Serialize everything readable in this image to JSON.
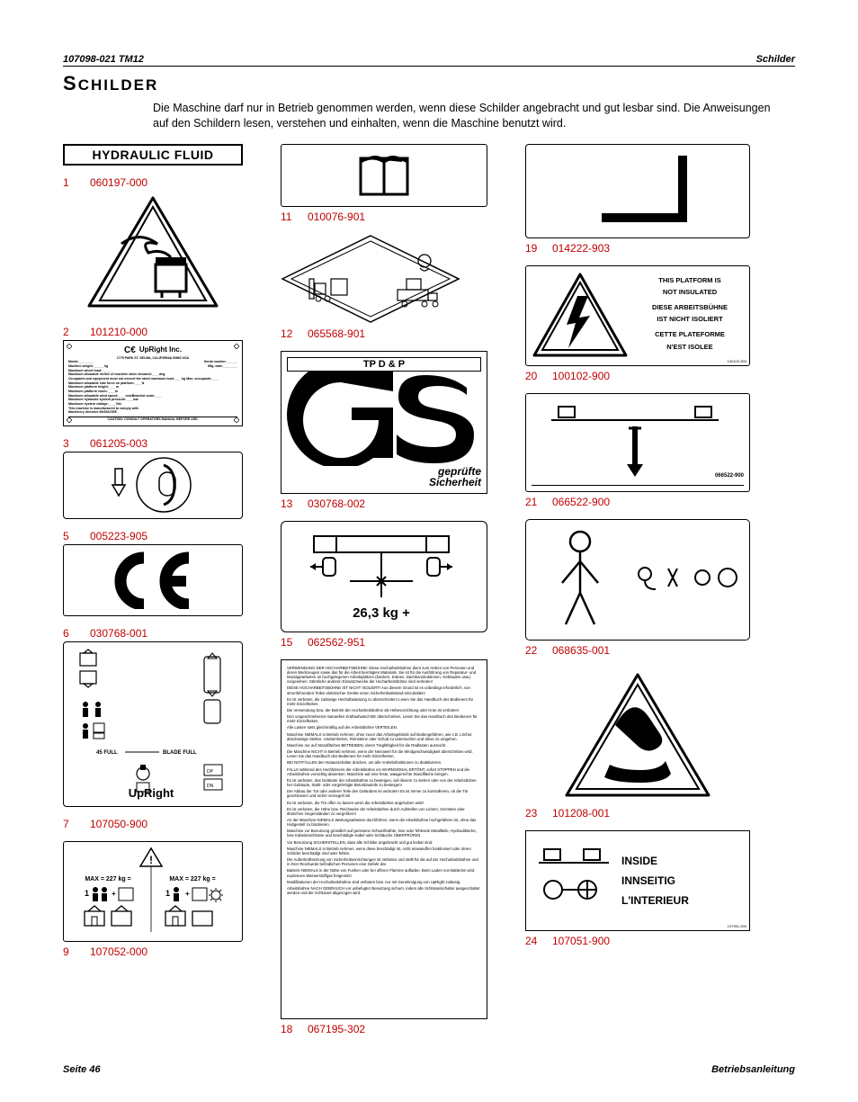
{
  "header": {
    "left": "107098-021 TM12",
    "right": "Schilder"
  },
  "title": {
    "cap": "S",
    "rest": "CHILDER"
  },
  "intro": "Die Maschine darf nur in Betrieb genommen werden, wenn diese Schilder angebracht und gut lesbar sind. Die Anweisungen auf den Schildern lesen, verstehen und einhalten, wenn die Maschine benutzt wird.",
  "footer": {
    "left": "Seite 46",
    "right": "Betriebsanleitung"
  },
  "colors": {
    "red": "#c00000",
    "black": "#000000",
    "yellow_tri": "#ffd400"
  },
  "column1": [
    {
      "num": "",
      "part": "",
      "title": "HYDRAULIC FLUID"
    },
    {
      "num": "1",
      "part": "060197-000"
    },
    {
      "num": "2",
      "part": "101210-000"
    },
    {
      "num": "3",
      "part": "061205-003"
    },
    {
      "num": "5",
      "part": "005223-905"
    },
    {
      "num": "6",
      "part": "030768-001"
    },
    {
      "num": "7",
      "part": "107050-900"
    },
    {
      "num": "9",
      "part": "107052-000"
    }
  ],
  "column2": [
    {
      "num": "11",
      "part": "010076-901"
    },
    {
      "num": "12",
      "part": "065568-901"
    },
    {
      "num": "13",
      "part": "030768-002",
      "label_top": "TP D & P",
      "label_bot1": "geprüfte",
      "label_bot2": "Sicherheit"
    },
    {
      "num": "15",
      "part": "062562-951",
      "weight": "26,3 kg +"
    },
    {
      "num": "18",
      "part": "067195-302"
    }
  ],
  "column3": [
    {
      "num": "19",
      "part": "014222-903"
    },
    {
      "num": "20",
      "part": "100102-900",
      "lines": [
        "THIS PLATFORM IS",
        "NOT INSULATED",
        "DIESE ARBEITSBÜHNE",
        "IST NICHT ISOLIERT",
        "CETTE PLATEFORME",
        "N'EST ISOLEE"
      ]
    },
    {
      "num": "21",
      "part": "066522-900"
    },
    {
      "num": "22",
      "part": "068635-001"
    },
    {
      "num": "23",
      "part": "101208-001"
    },
    {
      "num": "24",
      "part": "107051-900",
      "lines": [
        "INSIDE",
        "INNSEITIG",
        "L'INTERIEUR"
      ]
    }
  ],
  "nameplate": {
    "brand": "UpRight Inc.",
    "addr": "1775 PARK ST. SELMA, CALIFORNIA 93662 USA",
    "rows": [
      [
        "Model:________",
        "Serial number:______"
      ],
      [
        "Machine weight:______kg",
        "Mfg. date:________"
      ],
      [
        "Maximum wheel load:______",
        ""
      ],
      [
        "Maximum allowable incline of machine when elevated:____deg.",
        ""
      ],
      [
        "Occupants and equipment must not exceed the rated maximum load:____kg    Max. occupants:____",
        ""
      ],
      [
        "Maximum allowable side force on platform:____N",
        ""
      ],
      [
        "Maximum platform height:____m",
        ""
      ],
      [
        "Maximum platform reach:____m",
        ""
      ],
      [
        "Maximum allowable wind speed:____m/s/Beaufort scale____",
        ""
      ],
      [
        "Maximum hydraulic system pressure:____bar",
        ""
      ],
      [
        "Maximum system voltage:____Vdc",
        ""
      ],
      [
        "This machine is manufactured to comply with",
        ""
      ],
      [
        "Machinery directive 89/392/CEE",
        ""
      ]
    ],
    "caution": "CAUTION: CONSULT OPERATORS MANUAL BEFORE USE."
  },
  "upright_diagram": {
    "brand": "UpRight",
    "hi": "HI",
    "lo": "LO",
    "full": "45 FULL",
    "blade": "BLADE FULL",
    "btns": [
      "UP",
      "DN"
    ]
  },
  "max_decal": {
    "left": "MAX = 227 kg =",
    "right": "MAX = 227 kg ="
  },
  "warning_text": {
    "title": "VERWENDUNG DER HOCHARBEITSBÜHNE:",
    "paragraphs": [
      "VERWENDUNG DER HOCHARBEITSBÜHNE: Diese Hocharbeitsbühne dient zum Heben von Personen und deren Werkzeugen sowie das für die Arbeit benötigten Materials. Sie ist für die Ausführung von Reparatur- und Montagearbeiten an hochgelegenen Arbeitsplätzen (Decken, Kränen, Dachkonstruktionen, Gebäuden usw.) vorgesehen. Sämtliche anderen Einsatzzwecke der Hocharbeitsbühne sind verboten!",
      "DIESE HOCHARBEITSBÜHNE IST NICHT ISOLIERT! Aus diesem Grund ist es unbedingt erforderlich, von stromführenden Teilen elektrischer Geräte einen Sicherheitsabstand einzuhalten!",
      "Es ist verboten, die zulässige Höchstbelastung zu überschreiten! Lesen Sie das Handbuch des Bedieners für mehr Einzelheiten.",
      "Die Verwendung bzw. der Betrieb der Hocharbeitsbühne als Hebevorrichtung oder Kran ist verboten!",
      "Den vorgeschriebenen manuellen Kraftaufwand NIE überschreiten. Lesen Sie das Handbuch des Bedieners für mehr Einzelheiten.",
      "Alle Lasten stets gleichmäßig auf der Arbeitsbühne VERTEILEN.",
      "Maschine NIEMALS in Betrieb nehmen, ohne zuvor das Arbeitsgelände auf Bodengefahren, wie z.B. Löcher, abschüssige Stellen, Unebenheiten, Rinnsteine oder Schutt zu untersuchen und diese zu umgehen.",
      "Maschine nur auf Standflächen BETREIBEN, deren Tragfähigkeit für die Radlasten ausreicht.",
      "Die Maschine NICHT in Betrieb nehmen, wenn der Nennwert für die Windgeschwindigkeit überschritten wird. Lesen Sie das Handbuch des Bedieners für mehr Einzelheiten.",
      "BEI NOTFÄLLEN den Notausschalter drücken, um alle Antriebsfunktionen zu deaktivieren.",
      "FALLS während des Hochfahrens der Arbeitsbühne ein WARNSIGNAL ERTÖNT, sofort STOPPEN und die Arbeitsbühne vorsichtig absenken. Maschine auf eine feste, waagerechte Standfläche bringen.",
      "Es ist verboten, das Geländer der Arbeitsbühne zu besteigen, auf diesem zu stehen oder von der Arbeitsbühne her Gebäude, Stahl- oder vorgefertigte Betonbauteile zu besteigen!",
      "Der Abbau der Tür oder anderer Teile des Geländers ist verboten! Es ist immer zu kontrollieren, ob die Tür geschlossen und sicher verriegelt ist!",
      "Es ist verboten, die Tür offen zu lassen wenn die Arbeitsbühne angehoben wird!",
      "Es ist verboten, die Höhe bzw. Reichweite der Arbeitsbühne durch Aufstellen von Leitern, Gerüsten oder ähnlichen Gegenständen zu vergrößern!",
      "An der Maschine NIEMALS Wartungsarbeiten durchführen, wenn die Arbeitsbühne hochgefahren ist, ohne das Hubgestell zu blockieren.",
      "Maschine vor Benutzung gründlich auf gerissene Schweißnähte, lose oder fehlende Metallteile, Hydrauliklecks, lose Kabelanschlüsse und beschädigte Kabel oder Schläuche ÜBERPRÜFEN.",
      "Vor Benutzung SICHERSTELLEN, dass alle Schilder angebracht und gut lesbar sind.",
      "Maschine NIEMALS in Betrieb nehmen, wenn diese beschädigt ist, nicht einwandfrei funktioniert oder deren Schilder beschädigt sind oder fehlen.",
      "Die Außerkraftsetzung von Sicherheitseinrichtungen ist verboten und stellt für die auf der Hocharbeitsbühne und in ihrer Reichweite befindlichen Personen eine Gefahr dar.",
      "Batterie NIEMALS in der Nähe von Funken oder bei offener Flamme aufladen. Beim Laden von Batterien wird explosives Wasserstoffgas freigesetzt.",
      "Modifikationen der Hocharbeitsbühne sind verboten bzw. nur mit Genehmigung von UpRight zulässig.",
      "Arbeitsbühne NACH GEBRAUCH vor unbefugter Benutzung sichern, indem alle Schlüsselschalter ausgeschaltet werden und der Schlüssel abgezogen wird."
    ]
  }
}
